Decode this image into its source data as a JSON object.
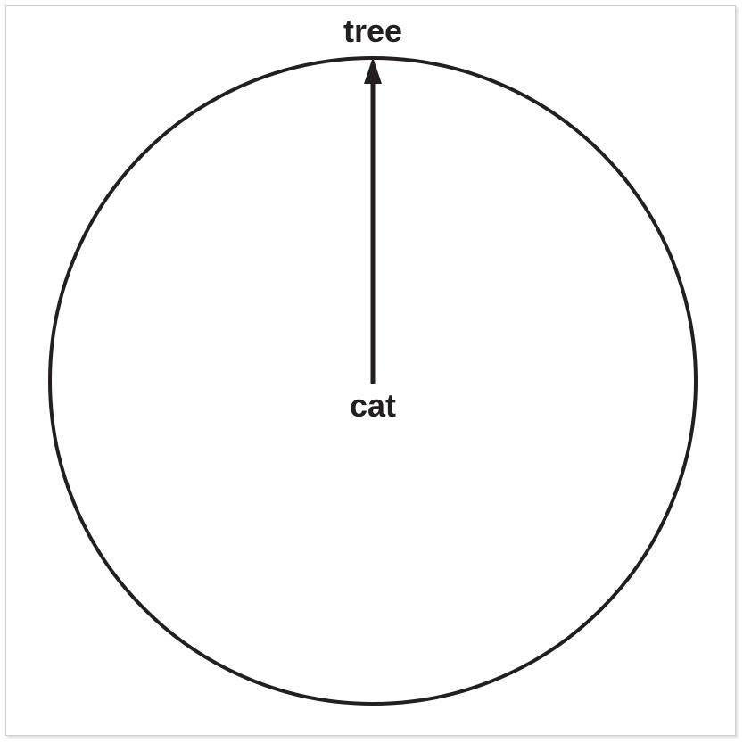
{
  "diagram": {
    "nodes": {
      "top": {
        "label": "tree"
      },
      "center": {
        "label": "cat"
      }
    },
    "arrow": {
      "from": "center",
      "to": "top"
    },
    "colors": {
      "stroke": "#231f20",
      "text": "#231f20"
    }
  }
}
